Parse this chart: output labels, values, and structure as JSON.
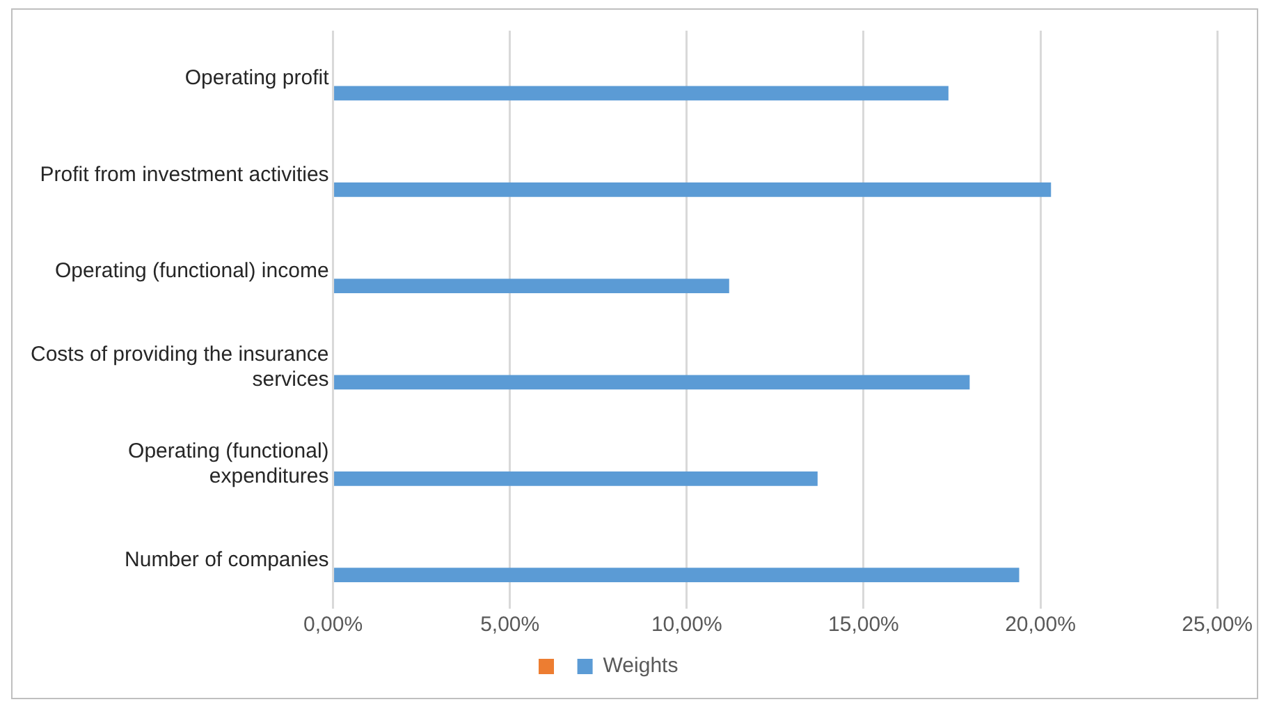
{
  "chart_data": {
    "type": "bar",
    "orientation": "horizontal",
    "categories": [
      "Operating profit",
      "Profit from investment activities",
      "Operating (functional) income",
      "Costs of providing the insurance services",
      "Operating (functional) expenditures",
      "Number of companies"
    ],
    "series": [
      {
        "color": "#ed7d31",
        "values": [
          null,
          null,
          null,
          null,
          null,
          null
        ]
      },
      {
        "name": "Weights",
        "color": "#5b9bd5",
        "values": [
          17.4,
          20.3,
          11.2,
          18.0,
          13.7,
          19.4
        ]
      }
    ],
    "xlim": [
      0,
      25
    ],
    "xticks": [
      {
        "value": 0,
        "label": "0,00%"
      },
      {
        "value": 5,
        "label": "5,00%"
      },
      {
        "value": 10,
        "label": "10,00%"
      },
      {
        "value": 15,
        "label": "15,00%"
      },
      {
        "value": 20,
        "label": "20,00%"
      },
      {
        "value": 25,
        "label": "25,00%"
      }
    ],
    "grid": "x",
    "legend": "bottom"
  }
}
